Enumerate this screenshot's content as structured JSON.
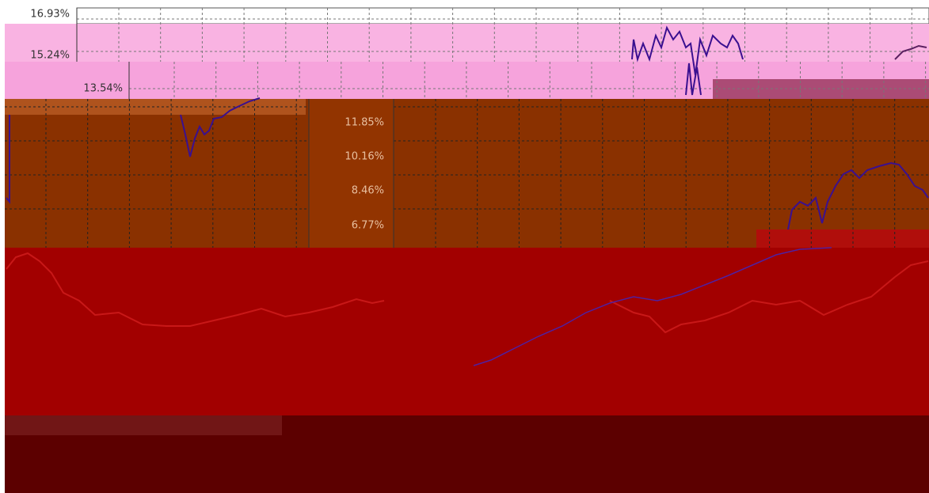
{
  "screen": {
    "tick_labels": [
      "16.93%",
      "15.24%",
      "13.54%",
      "11.85%",
      "10.16%",
      "8.46%",
      "6.77%"
    ]
  }
}
